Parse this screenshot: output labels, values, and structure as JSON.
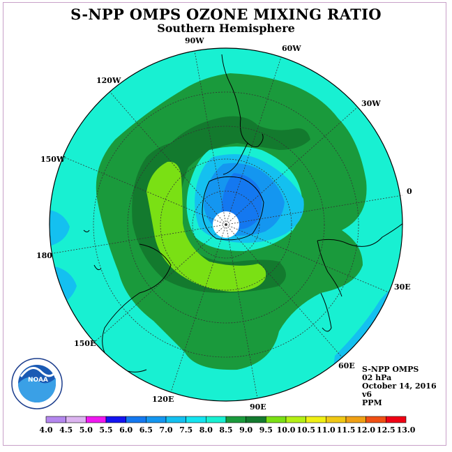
{
  "title": "S-NPP OMPS OZONE MIXING RATIO",
  "subtitle": "Southern Hemisphere",
  "longitudes": [
    "90W",
    "60W",
    "30W",
    "0",
    "30E",
    "60E",
    "90E",
    "120E",
    "150E",
    "180",
    "150W",
    "120W"
  ],
  "info": {
    "instrument": "S-NPP OMPS",
    "level": "02 hPa",
    "date": "October 14, 2016",
    "version": "v6",
    "units": "PPM"
  },
  "logo": {
    "text": "NOAA",
    "ring_text": "NATIONAL OCEANIC AND ATMOSPHERIC ADMINISTRATION U.S. DEPARTMENT OF COMMERCE"
  },
  "colorbar": {
    "ticks": [
      "4.0",
      "4.5",
      "5.0",
      "5.5",
      "6.0",
      "6.5",
      "7.0",
      "7.5",
      "8.0",
      "8.5",
      "9.0",
      "9.5",
      "10.0",
      "10.5",
      "11.0",
      "11.5",
      "12.0",
      "12.5",
      "13.0"
    ],
    "colors": [
      "#b487ee",
      "#dcb4f0",
      "#f018f0",
      "#1414f0",
      "#1478f0",
      "#1496f0",
      "#14c0f0",
      "#14e4f0",
      "#18f0d2",
      "#1a9a3c",
      "#137a2e",
      "#7ae014",
      "#b4f014",
      "#f0f014",
      "#f0c814",
      "#f0a014",
      "#f05014",
      "#f00014",
      "#7a5030"
    ]
  }
}
